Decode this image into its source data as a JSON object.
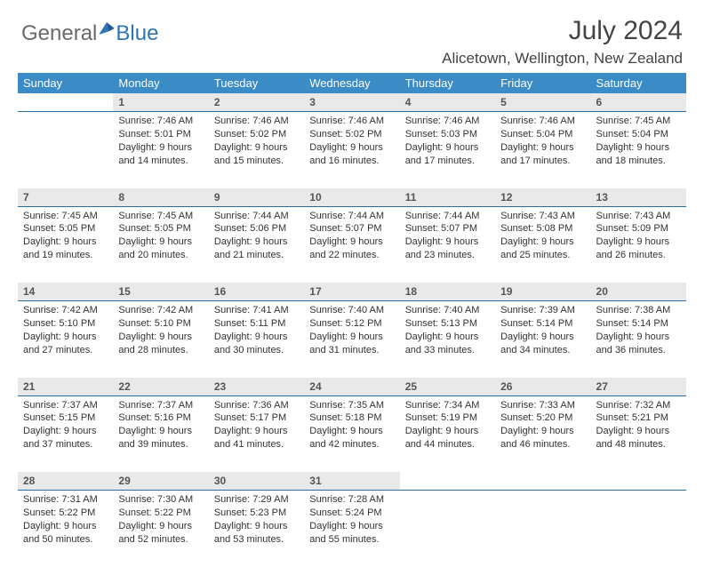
{
  "brand": {
    "part1": "General",
    "part2": "Blue"
  },
  "title": "July 2024",
  "location": "Alicetown, Wellington, New Zealand",
  "colors": {
    "header_bg": "#3b8bc7",
    "header_text": "#ffffff",
    "daynum_bg": "#e9e9e9",
    "rule": "#2e6da4",
    "brand_blue": "#2e75b6",
    "brand_gray": "#6a6a6a",
    "body_text": "#333333"
  },
  "weekdays": [
    "Sunday",
    "Monday",
    "Tuesday",
    "Wednesday",
    "Thursday",
    "Friday",
    "Saturday"
  ],
  "first_weekday_offset": 1,
  "days": [
    {
      "n": 1,
      "sunrise": "7:46 AM",
      "sunset": "5:01 PM",
      "dl_h": 9,
      "dl_m": 14
    },
    {
      "n": 2,
      "sunrise": "7:46 AM",
      "sunset": "5:02 PM",
      "dl_h": 9,
      "dl_m": 15
    },
    {
      "n": 3,
      "sunrise": "7:46 AM",
      "sunset": "5:02 PM",
      "dl_h": 9,
      "dl_m": 16
    },
    {
      "n": 4,
      "sunrise": "7:46 AM",
      "sunset": "5:03 PM",
      "dl_h": 9,
      "dl_m": 17
    },
    {
      "n": 5,
      "sunrise": "7:46 AM",
      "sunset": "5:04 PM",
      "dl_h": 9,
      "dl_m": 17
    },
    {
      "n": 6,
      "sunrise": "7:45 AM",
      "sunset": "5:04 PM",
      "dl_h": 9,
      "dl_m": 18
    },
    {
      "n": 7,
      "sunrise": "7:45 AM",
      "sunset": "5:05 PM",
      "dl_h": 9,
      "dl_m": 19
    },
    {
      "n": 8,
      "sunrise": "7:45 AM",
      "sunset": "5:05 PM",
      "dl_h": 9,
      "dl_m": 20
    },
    {
      "n": 9,
      "sunrise": "7:44 AM",
      "sunset": "5:06 PM",
      "dl_h": 9,
      "dl_m": 21
    },
    {
      "n": 10,
      "sunrise": "7:44 AM",
      "sunset": "5:07 PM",
      "dl_h": 9,
      "dl_m": 22
    },
    {
      "n": 11,
      "sunrise": "7:44 AM",
      "sunset": "5:07 PM",
      "dl_h": 9,
      "dl_m": 23
    },
    {
      "n": 12,
      "sunrise": "7:43 AM",
      "sunset": "5:08 PM",
      "dl_h": 9,
      "dl_m": 25
    },
    {
      "n": 13,
      "sunrise": "7:43 AM",
      "sunset": "5:09 PM",
      "dl_h": 9,
      "dl_m": 26
    },
    {
      "n": 14,
      "sunrise": "7:42 AM",
      "sunset": "5:10 PM",
      "dl_h": 9,
      "dl_m": 27
    },
    {
      "n": 15,
      "sunrise": "7:42 AM",
      "sunset": "5:10 PM",
      "dl_h": 9,
      "dl_m": 28
    },
    {
      "n": 16,
      "sunrise": "7:41 AM",
      "sunset": "5:11 PM",
      "dl_h": 9,
      "dl_m": 30
    },
    {
      "n": 17,
      "sunrise": "7:40 AM",
      "sunset": "5:12 PM",
      "dl_h": 9,
      "dl_m": 31
    },
    {
      "n": 18,
      "sunrise": "7:40 AM",
      "sunset": "5:13 PM",
      "dl_h": 9,
      "dl_m": 33
    },
    {
      "n": 19,
      "sunrise": "7:39 AM",
      "sunset": "5:14 PM",
      "dl_h": 9,
      "dl_m": 34
    },
    {
      "n": 20,
      "sunrise": "7:38 AM",
      "sunset": "5:14 PM",
      "dl_h": 9,
      "dl_m": 36
    },
    {
      "n": 21,
      "sunrise": "7:37 AM",
      "sunset": "5:15 PM",
      "dl_h": 9,
      "dl_m": 37
    },
    {
      "n": 22,
      "sunrise": "7:37 AM",
      "sunset": "5:16 PM",
      "dl_h": 9,
      "dl_m": 39
    },
    {
      "n": 23,
      "sunrise": "7:36 AM",
      "sunset": "5:17 PM",
      "dl_h": 9,
      "dl_m": 41
    },
    {
      "n": 24,
      "sunrise": "7:35 AM",
      "sunset": "5:18 PM",
      "dl_h": 9,
      "dl_m": 42
    },
    {
      "n": 25,
      "sunrise": "7:34 AM",
      "sunset": "5:19 PM",
      "dl_h": 9,
      "dl_m": 44
    },
    {
      "n": 26,
      "sunrise": "7:33 AM",
      "sunset": "5:20 PM",
      "dl_h": 9,
      "dl_m": 46
    },
    {
      "n": 27,
      "sunrise": "7:32 AM",
      "sunset": "5:21 PM",
      "dl_h": 9,
      "dl_m": 48
    },
    {
      "n": 28,
      "sunrise": "7:31 AM",
      "sunset": "5:22 PM",
      "dl_h": 9,
      "dl_m": 50
    },
    {
      "n": 29,
      "sunrise": "7:30 AM",
      "sunset": "5:22 PM",
      "dl_h": 9,
      "dl_m": 52
    },
    {
      "n": 30,
      "sunrise": "7:29 AM",
      "sunset": "5:23 PM",
      "dl_h": 9,
      "dl_m": 53
    },
    {
      "n": 31,
      "sunrise": "7:28 AM",
      "sunset": "5:24 PM",
      "dl_h": 9,
      "dl_m": 55
    }
  ]
}
